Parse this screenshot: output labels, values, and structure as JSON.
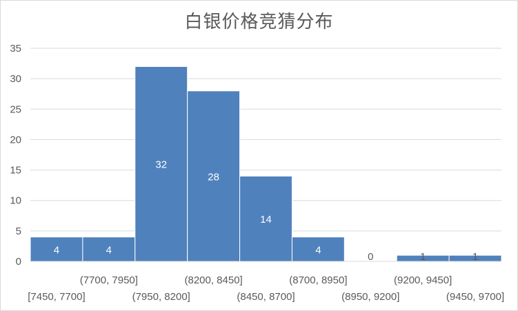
{
  "chart_data": {
    "type": "bar",
    "title": "白银价格竞猜分布",
    "xlabel": "",
    "ylabel": "",
    "ylim": [
      0,
      35
    ],
    "yticks": [
      0,
      5,
      10,
      15,
      20,
      25,
      30,
      35
    ],
    "grid": true,
    "legend": "none",
    "categories": [
      "[7450, 7700]",
      "(7700, 7950]",
      "(7950, 8200]",
      "(8200, 8450]",
      "(8450, 8700]",
      "(8700, 8950]",
      "(8950, 9200]",
      "(9200, 9450]",
      "(9450, 9700]"
    ],
    "values": [
      4,
      4,
      32,
      28,
      14,
      4,
      0,
      1,
      1
    ],
    "data_labels": [
      "4",
      "4",
      "32",
      "28",
      "14",
      "4",
      "0",
      "1",
      "1"
    ],
    "colors": {
      "bar": "#4f81bd",
      "bar_border": "#ffffff",
      "grid": "#d9d9d9",
      "axis_text": "#595959",
      "label_inside": "#ffffff",
      "label_outside": "#595959"
    }
  }
}
